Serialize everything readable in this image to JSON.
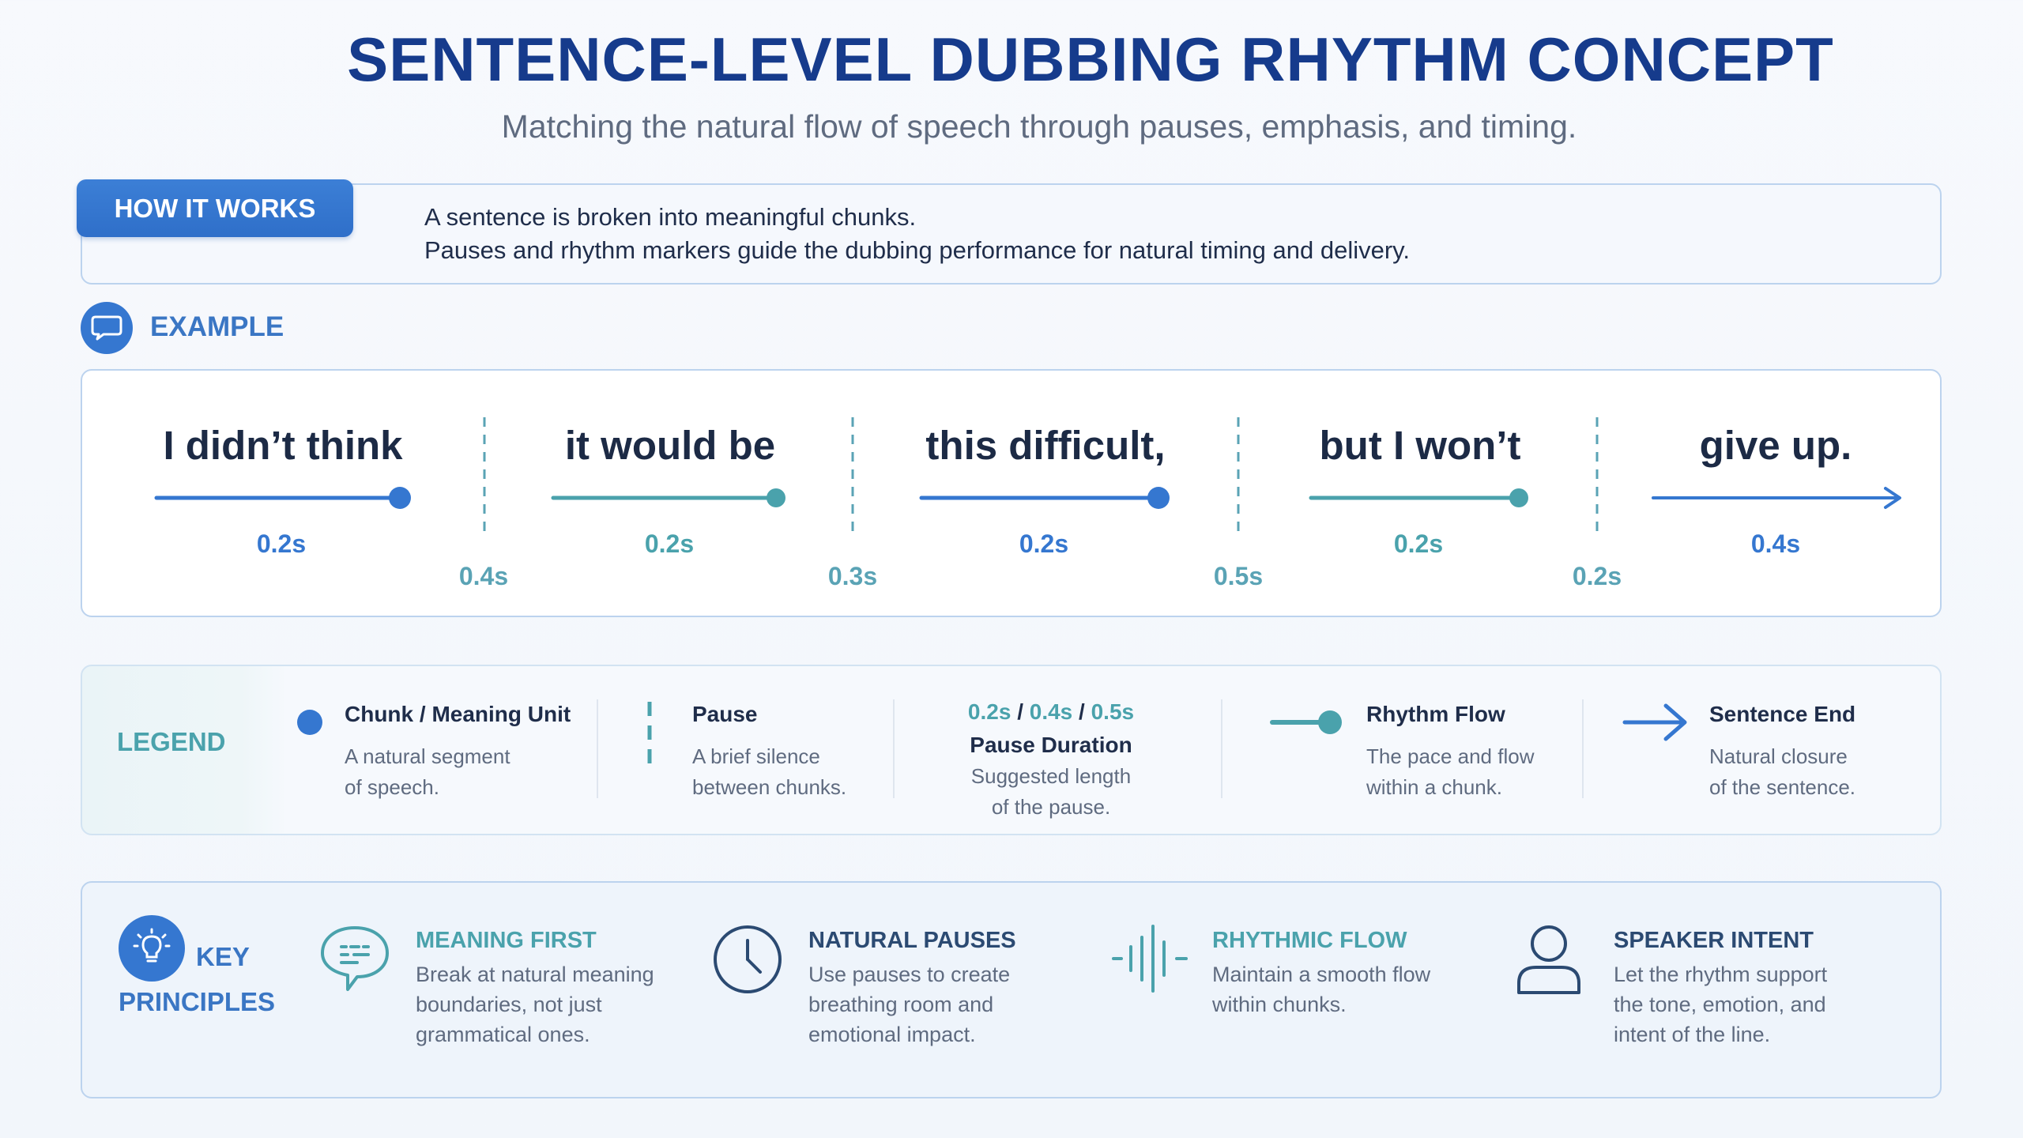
{
  "header": {
    "title": "SENTENCE-LEVEL DUBBING RHYTHM CONCEPT",
    "subtitle": "Matching the natural flow of speech through pauses, emphasis, and timing."
  },
  "how_it_works": {
    "tab_label": "HOW IT WORKS",
    "lines": [
      "A sentence is broken into meaningful chunks.",
      "Pauses and rhythm markers guide the dubbing performance for natural timing and delivery."
    ]
  },
  "example": {
    "label": "EXAMPLE",
    "chunks": [
      {
        "text": "I didn’t think",
        "duration": "0.2s"
      },
      {
        "text": "it would be",
        "duration": "0.2s"
      },
      {
        "text": "this difficult,",
        "duration": "0.2s"
      },
      {
        "text": "but I won’t",
        "duration": "0.2s"
      },
      {
        "text": "give up.",
        "duration": "0.4s"
      }
    ],
    "pauses": [
      "0.4s",
      "0.3s",
      "0.5s",
      "0.2s"
    ]
  },
  "legend": {
    "label": "LEGEND",
    "items": [
      {
        "title": "Chunk / Meaning Unit",
        "desc": [
          "A natural segment",
          "of speech."
        ]
      },
      {
        "title": "Pause",
        "desc": [
          "A brief silence",
          "between chunks."
        ]
      },
      {
        "values": [
          "0.2s",
          "0.4s",
          "0.5s"
        ],
        "separator": "/",
        "title": "Pause Duration",
        "desc": [
          "Suggested length",
          "of the pause."
        ]
      },
      {
        "title": "Rhythm Flow",
        "desc": [
          "The pace and flow",
          "within a chunk."
        ]
      },
      {
        "title": "Sentence End",
        "desc": [
          "Natural closure",
          "of the sentence."
        ]
      }
    ]
  },
  "principles": {
    "label_line1": "KEY",
    "label_line2": "PRINCIPLES",
    "items": [
      {
        "title": "MEANING FIRST",
        "desc": [
          "Break at natural meaning",
          "boundaries, not just",
          "grammatical ones."
        ],
        "icon": "speech-bubble-icon"
      },
      {
        "title": "NATURAL PAUSES",
        "desc": [
          "Use pauses to create",
          "breathing room and",
          "emotional impact."
        ],
        "icon": "clock-icon"
      },
      {
        "title": "RHYTHMIC FLOW",
        "desc": [
          "Maintain a smooth flow",
          "within chunks."
        ],
        "icon": "waveform-icon"
      },
      {
        "title": "SPEAKER INTENT",
        "desc": [
          "Let the rhythm support",
          "the tone, emotion, and",
          "intent of the line."
        ],
        "icon": "person-icon"
      }
    ]
  },
  "colors": {
    "blue": "#3577d0",
    "teal": "#4aa2ac",
    "navy": "#163b8c"
  }
}
